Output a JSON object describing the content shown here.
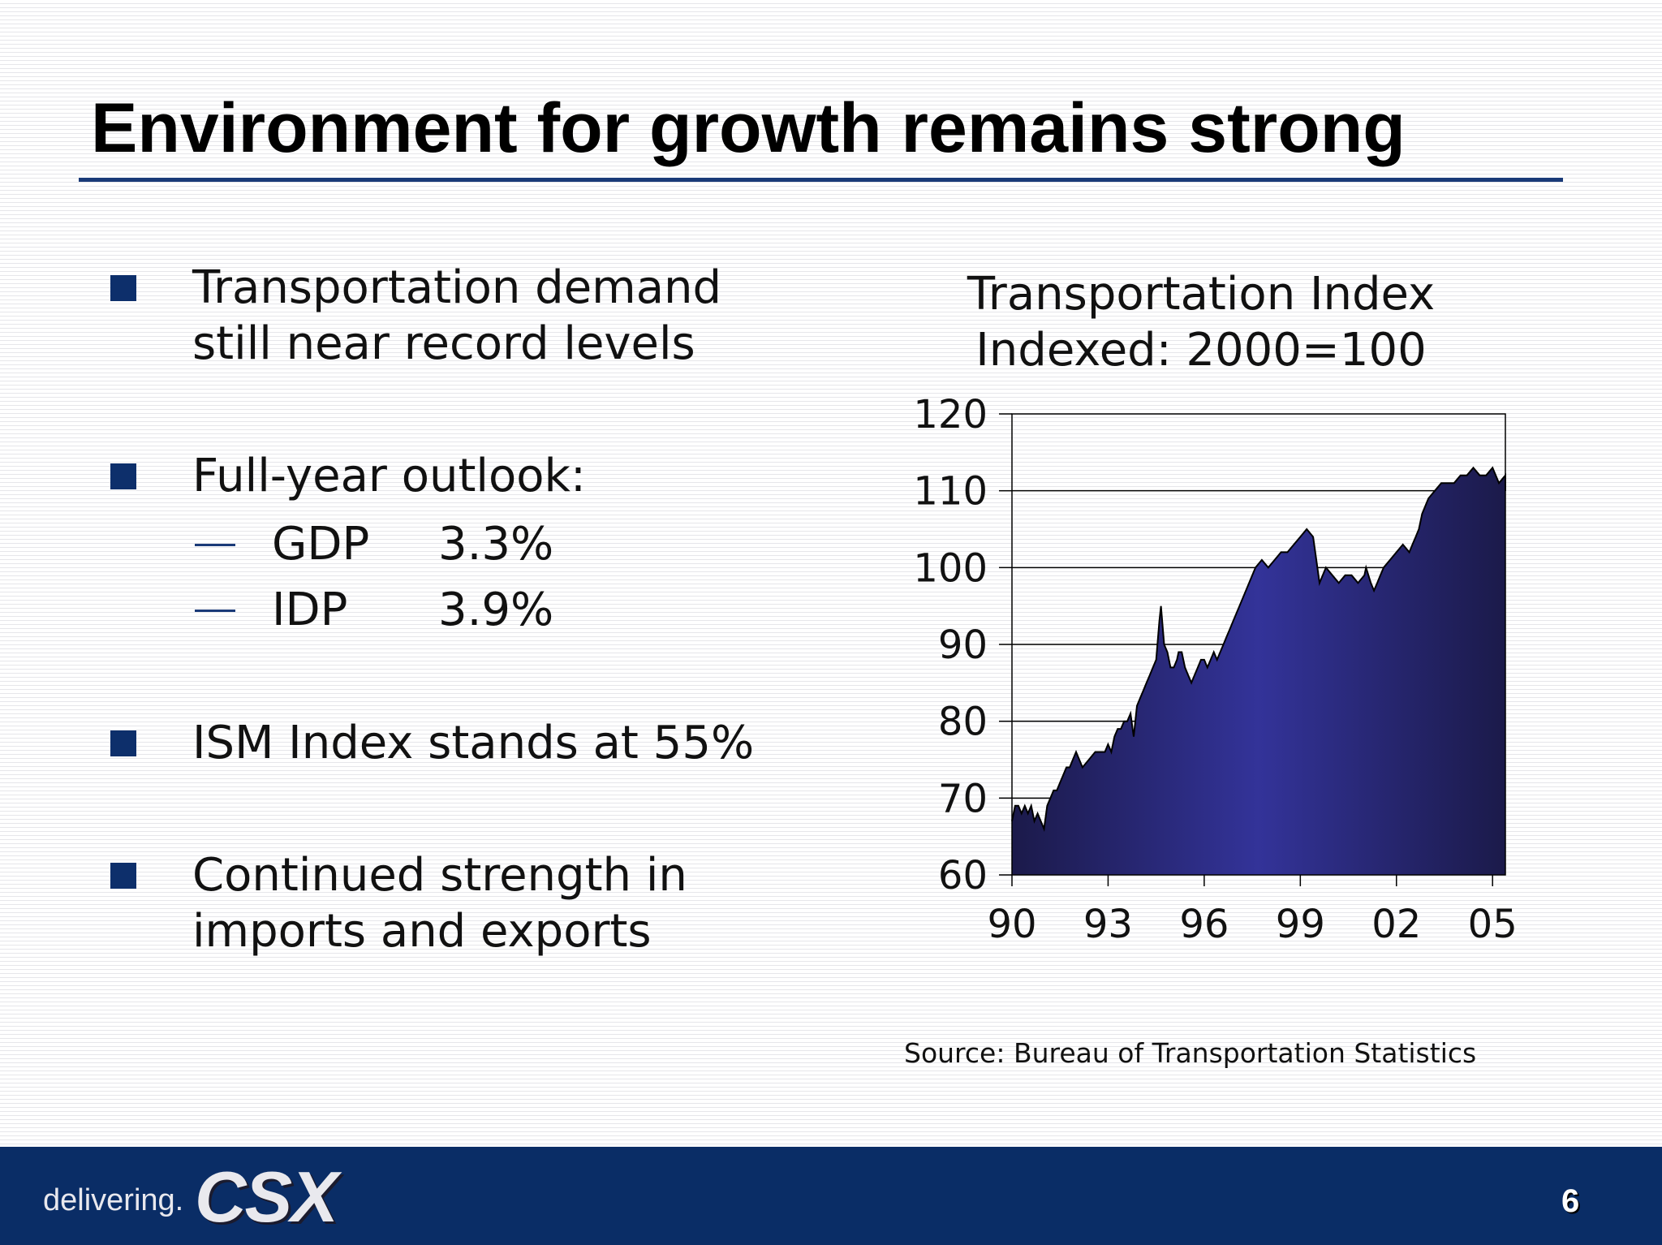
{
  "slide": {
    "title": "Environment for growth remains strong",
    "page_number": "6"
  },
  "bullets": [
    {
      "lines": [
        "Transportation demand",
        "still near record levels"
      ]
    },
    {
      "lines": [
        "Full-year outlook:"
      ]
    },
    {
      "lines": [
        "ISM Index stands at 55%"
      ]
    },
    {
      "lines": [
        "Continued strength in",
        "imports and exports"
      ]
    }
  ],
  "outlook": [
    {
      "label": "GDP",
      "value": "3.3%"
    },
    {
      "label": "IDP",
      "value": "3.9%"
    }
  ],
  "chart_data": {
    "type": "area",
    "title_lines": [
      "Transportation Index",
      "Indexed:  2000=100"
    ],
    "xlabel": "",
    "ylabel": "",
    "ylim": [
      60,
      120
    ],
    "yticks": [
      60,
      70,
      80,
      90,
      100,
      110,
      120
    ],
    "xlim": [
      1990,
      2005.4
    ],
    "xtick_values": [
      1990,
      1993,
      1996,
      1999,
      2002,
      2005
    ],
    "xtick_labels": [
      "90",
      "93",
      "96",
      "99",
      "02",
      "05"
    ],
    "grid": "horizontal",
    "fill_color": "#333399",
    "series": [
      {
        "x": [
          1990.0,
          1990.1,
          1990.2,
          1990.3,
          1990.4,
          1990.5,
          1990.6,
          1990.7,
          1990.8,
          1990.9,
          1991.0,
          1991.1,
          1991.2,
          1991.3,
          1991.4,
          1991.5,
          1991.6,
          1991.7,
          1991.8,
          1991.9,
          1992.0,
          1992.2,
          1992.4,
          1992.6,
          1992.8,
          1992.9,
          1993.0,
          1993.1,
          1993.2,
          1993.3,
          1993.4,
          1993.5,
          1993.6,
          1993.7,
          1993.8,
          1993.9,
          1994.0,
          1994.1,
          1994.2,
          1994.3,
          1994.4,
          1994.5,
          1994.6,
          1994.65,
          1994.75,
          1994.85,
          1994.95,
          1995.05,
          1995.15,
          1995.2,
          1995.3,
          1995.4,
          1995.5,
          1995.6,
          1995.7,
          1995.8,
          1995.9,
          1996.0,
          1996.1,
          1996.2,
          1996.3,
          1996.4,
          1996.5,
          1996.6,
          1996.7,
          1996.8,
          1996.9,
          1997.0,
          1997.2,
          1997.4,
          1997.6,
          1997.8,
          1998.0,
          1998.2,
          1998.4,
          1998.6,
          1998.8,
          1999.0,
          1999.2,
          1999.4,
          1999.6,
          1999.8,
          2000.0,
          2000.2,
          2000.4,
          2000.6,
          2000.8,
          2001.0,
          2001.05,
          2001.2,
          2001.3,
          2001.4,
          2001.5,
          2001.6,
          2001.8,
          2002.0,
          2002.2,
          2002.4,
          2002.5,
          2002.6,
          2002.7,
          2002.8,
          2003.0,
          2003.2,
          2003.4,
          2003.6,
          2003.8,
          2004.0,
          2004.2,
          2004.4,
          2004.6,
          2004.8,
          2005.0,
          2005.2,
          2005.4,
          2005.6,
          2005.8,
          2006.0
        ],
        "y": [
          67,
          69,
          69,
          68,
          69,
          68,
          69,
          67,
          68,
          67,
          66,
          69,
          70,
          71,
          71,
          72,
          73,
          74,
          74,
          75,
          76,
          74,
          75,
          76,
          76,
          76,
          77,
          76,
          78,
          79,
          79,
          80,
          80,
          81,
          78,
          82,
          83,
          84,
          85,
          86,
          87,
          88,
          93,
          95,
          90,
          89,
          87,
          87,
          88,
          89,
          89,
          87,
          86,
          85,
          86,
          87,
          88,
          88,
          87,
          88,
          89,
          88,
          89,
          90,
          91,
          92,
          93,
          94,
          96,
          98,
          100,
          101,
          100,
          101,
          102,
          102,
          103,
          104,
          105,
          104,
          98,
          100,
          99,
          98,
          99,
          99,
          98,
          99,
          100,
          98,
          97,
          98,
          99,
          100,
          101,
          102,
          103,
          102,
          103,
          104,
          105,
          107,
          109,
          110,
          111,
          111,
          111,
          112,
          112,
          113,
          112,
          112,
          113,
          111,
          112,
          112,
          110,
          112
        ]
      }
    ]
  },
  "source": "Source:  Bureau of Transportation Statistics",
  "footer": {
    "tagline": "delivering.",
    "logo_text": "CSX"
  }
}
